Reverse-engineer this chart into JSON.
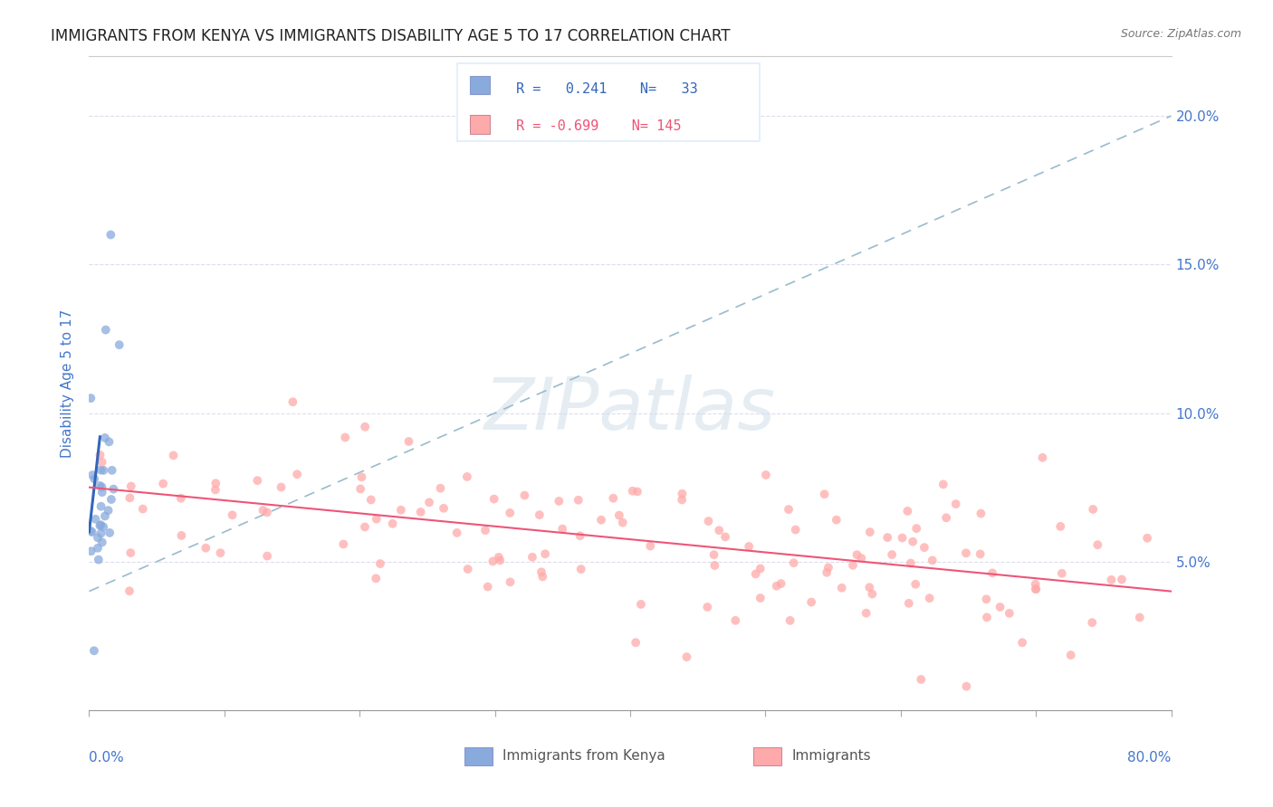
{
  "title": "IMMIGRANTS FROM KENYA VS IMMIGRANTS DISABILITY AGE 5 TO 17 CORRELATION CHART",
  "source": "Source: ZipAtlas.com",
  "ylabel": "Disability Age 5 to 17",
  "right_yticklabels": [
    "",
    "5.0%",
    "10.0%",
    "15.0%",
    "20.0%"
  ],
  "xlim": [
    0.0,
    0.8
  ],
  "ylim": [
    0.0,
    0.22
  ],
  "legend_R_blue": "0.241",
  "legend_N_blue": "33",
  "legend_R_pink": "-0.699",
  "legend_N_pink": "145",
  "watermark_text": "ZIPatlas",
  "background_color": "#ffffff",
  "blue_color": "#88aadd",
  "pink_color": "#ffaaaa",
  "blue_trend_color": "#3366bb",
  "pink_trend_color": "#ee5577",
  "dashed_color": "#99bbcc",
  "title_color": "#222222",
  "axis_label_color": "#4477cc",
  "right_axis_color": "#4477cc",
  "grid_color": "#ddddee",
  "source_color": "#777777",
  "bottom_legend_text_color": "#555555",
  "legend_box_color": "#ddeeff"
}
